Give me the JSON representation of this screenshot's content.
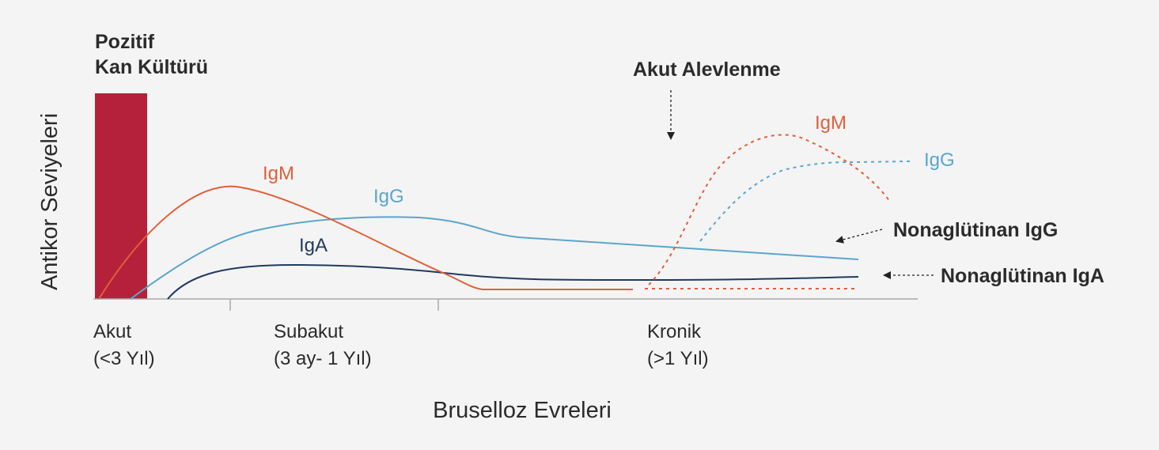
{
  "markers": {
    "culture": [
      "Pozitif",
      "Kan Kültürü"
    ],
    "flare": "Akut Alevlenme"
  },
  "curves": {
    "acute_igm": "IgM",
    "acute_igg": "IgG",
    "acute_iga": "IgA",
    "flare_igm": "IgM",
    "flare_igg": "IgG",
    "nonagglutinating_igg": "Nonaglütinan IgG",
    "nonagglutinating_iga": "Nonaglütinan IgA"
  },
  "axes": {
    "y_label": "Antikor Seviyeleri",
    "x_label": "Bruselloz Evreleri"
  },
  "stages": [
    {
      "name": "Akut",
      "range": "(<3 Yıl)"
    },
    {
      "name": "Subakut",
      "range": "(3 ay- 1 Yıl)"
    },
    {
      "name": "Kronik",
      "range": "(>1 Yıl)"
    }
  ]
}
